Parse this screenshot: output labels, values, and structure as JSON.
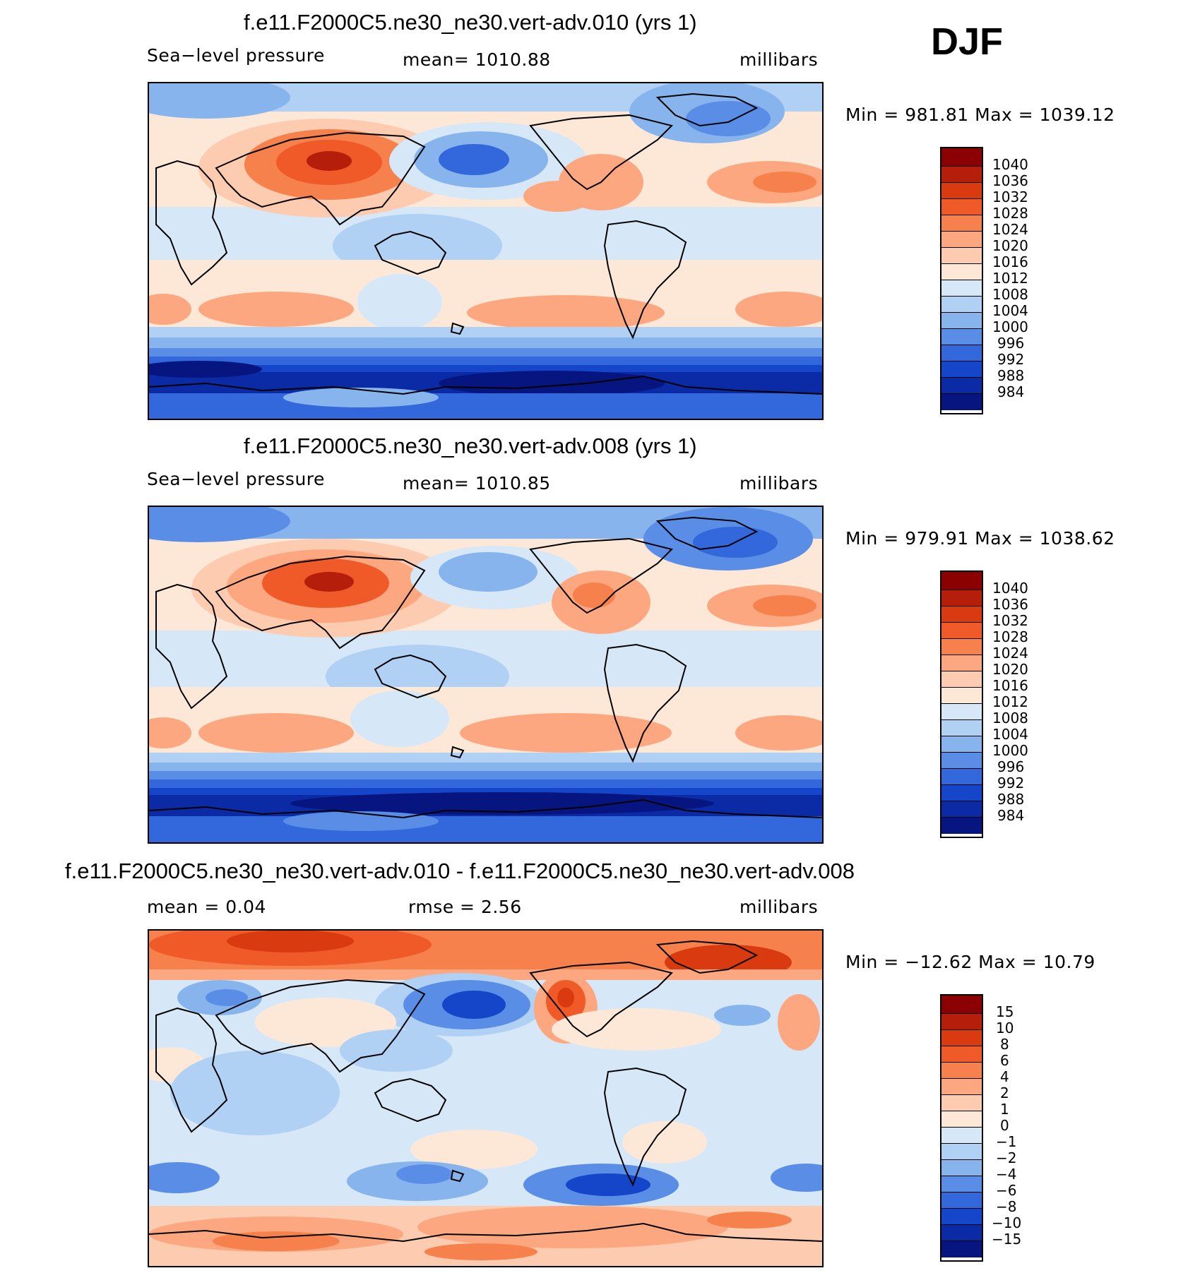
{
  "season": "DJF",
  "panels": [
    {
      "title": "f.e11.F2000C5.ne30_ne30.vert-adv.010 (yrs 1)",
      "left_label": "Sea−level pressure",
      "center_label": "mean=  1010.88",
      "right_label": "millibars",
      "minmax": "Min  =  981.81  Max  =  1039.12",
      "levels": [
        "1040",
        "1036",
        "1032",
        "1028",
        "1024",
        "1020",
        "1016",
        "1012",
        "1008",
        "1004",
        "1000",
        "996",
        "992",
        "988",
        "984"
      ]
    },
    {
      "title": "f.e11.F2000C5.ne30_ne30.vert-adv.008 (yrs 1)",
      "left_label": "Sea−level pressure",
      "center_label": "mean=  1010.85",
      "right_label": "millibars",
      "minmax": "Min  =  979.91  Max  =  1038.62",
      "levels": [
        "1040",
        "1036",
        "1032",
        "1028",
        "1024",
        "1020",
        "1016",
        "1012",
        "1008",
        "1004",
        "1000",
        "996",
        "992",
        "988",
        "984"
      ]
    },
    {
      "title": "f.e11.F2000C5.ne30_ne30.vert-adv.010 - f.e11.F2000C5.ne30_ne30.vert-adv.008",
      "left_label": "mean  =     0.04",
      "center_label": "rmse  =     2.56",
      "right_label": "millibars",
      "minmax": "Min  =  −12.62  Max  =    10.79",
      "levels": [
        "15",
        "10",
        "8",
        "6",
        "4",
        "2",
        "1",
        "0",
        "−1",
        "−2",
        "−4",
        "−6",
        "−8",
        "−10",
        "−15"
      ]
    }
  ],
  "colors": {
    "scale": [
      "#8b0000",
      "#b51e0a",
      "#d93a10",
      "#f05a28",
      "#f6814c",
      "#fca77f",
      "#fdcbb0",
      "#fde8d8",
      "#d6e8f8",
      "#b0d0f4",
      "#88b4ee",
      "#5a8ee6",
      "#3268dc",
      "#1545c8",
      "#0b2aa5",
      "#071580"
    ],
    "background": "#ffffff"
  }
}
